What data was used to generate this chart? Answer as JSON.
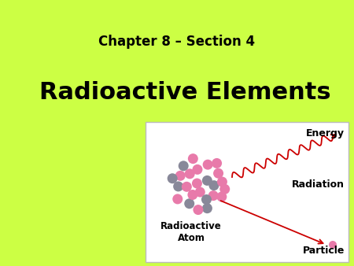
{
  "bg_color": "#ccff44",
  "title_text": "Chapter 8 – Section 4",
  "subtitle_text": "Radioactive Elements",
  "title_fontsize": 12,
  "subtitle_fontsize": 22,
  "panel_bg": "#ffffff",
  "label_energy": "Energy",
  "label_radiation": "Radiation",
  "label_particle": "Particle",
  "label_atom": "Radioactive\nAtom",
  "arrow_color": "#cc0000",
  "font_family": "Comic Sans MS",
  "pink_color": "#e87aaa",
  "gray_color": "#888899"
}
